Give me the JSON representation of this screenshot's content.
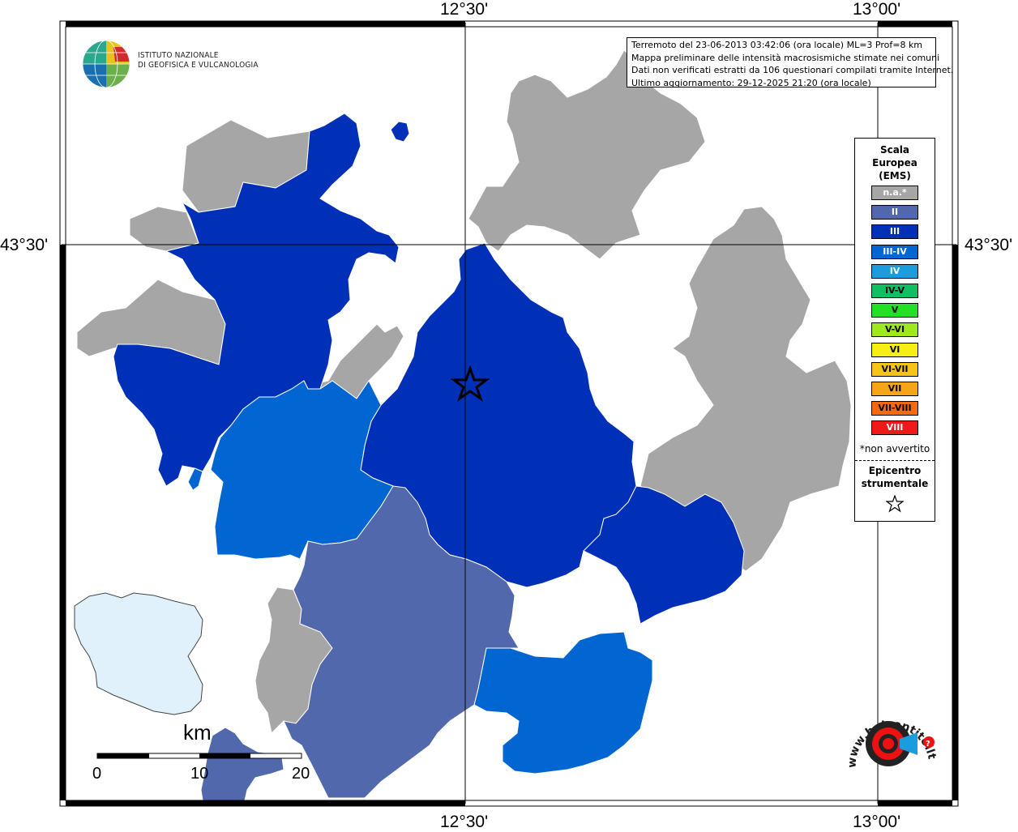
{
  "coords": {
    "top_lon_1": "12°30'",
    "top_lon_2": "13°00'",
    "bottom_lon_1": "12°30'",
    "bottom_lon_2": "13°00'",
    "left_lat": "43°30'",
    "right_lat": "43°30'"
  },
  "institute": {
    "line1": "ISTITUTO NAZIONALE",
    "line2": "DI GEOFISICA E VULCANOLOGIA"
  },
  "info": {
    "line1": "Terremoto del 23-06-2013 03:42:06 (ora locale) ML=3 Prof=8 km",
    "line2": "Mappa preliminare delle intensità macrosismiche stimate nei comuni",
    "line3": "Dati non verificati estratti da 106 questionari compilati tramite Internet.",
    "line4": "Ultimo aggiornamento: 29-12-2025 21:20 (ora locale)"
  },
  "legend": {
    "title_line1": "Scala",
    "title_line2": "Europea",
    "title_line3": "(EMS)",
    "classes": [
      {
        "label": "n.a.*",
        "color": "#a6a6a6",
        "text_color": "#ffffff"
      },
      {
        "label": "II",
        "color": "#5268ac",
        "text_color": "#ffffff"
      },
      {
        "label": "III",
        "color": "#0130b8",
        "text_color": "#ffffff"
      },
      {
        "label": "III-IV",
        "color": "#0165d2",
        "text_color": "#ffffff"
      },
      {
        "label": "IV",
        "color": "#1a9cde",
        "text_color": "#ffffff"
      },
      {
        "label": "IV-V",
        "color": "#0fbf62",
        "text_color": "#000000"
      },
      {
        "label": "V",
        "color": "#22e022",
        "text_color": "#000000"
      },
      {
        "label": "V-VI",
        "color": "#9de81e",
        "text_color": "#000000"
      },
      {
        "label": "VI",
        "color": "#f6ee14",
        "text_color": "#000000"
      },
      {
        "label": "VI-VII",
        "color": "#f6c418",
        "text_color": "#000000"
      },
      {
        "label": "VII",
        "color": "#f6a418",
        "text_color": "#000000"
      },
      {
        "label": "VII-VIII",
        "color": "#f6690f",
        "text_color": "#000000"
      },
      {
        "label": "VIII",
        "color": "#f01818",
        "text_color": "#ffffff"
      }
    ],
    "note": "*non avvertito",
    "epicentre_line1": "Epicentro",
    "epicentre_line2": "strumentale",
    "epicentre_symbol": "star-icon"
  },
  "scale_bar": {
    "unit": "km",
    "ticks": [
      "0",
      "10",
      "20"
    ]
  },
  "watermark": {
    "text": "www.haisentitoilterremoto.it"
  },
  "colors": {
    "na": "#a6a6a6",
    "ii": "#5268ac",
    "iii": "#0130b8",
    "iii_iv": "#0165d2",
    "lake": "#e0f1fb"
  }
}
